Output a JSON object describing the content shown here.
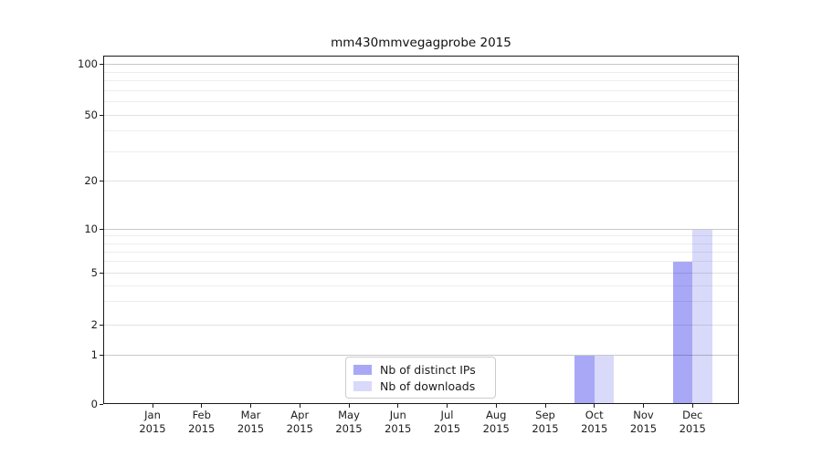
{
  "chart_data": {
    "type": "bar",
    "title": "mm430mmvegagprobe 2015",
    "xlabel": "",
    "ylabel": "",
    "yscale": "symlog",
    "ylim": [
      0,
      115
    ],
    "grid": "horizontal, major and minor",
    "legend_position": "lower center",
    "categories": [
      {
        "month": "Jan",
        "year": "2015"
      },
      {
        "month": "Feb",
        "year": "2015"
      },
      {
        "month": "Mar",
        "year": "2015"
      },
      {
        "month": "Apr",
        "year": "2015"
      },
      {
        "month": "May",
        "year": "2015"
      },
      {
        "month": "Jun",
        "year": "2015"
      },
      {
        "month": "Jul",
        "year": "2015"
      },
      {
        "month": "Aug",
        "year": "2015"
      },
      {
        "month": "Sep",
        "year": "2015"
      },
      {
        "month": "Oct",
        "year": "2015"
      },
      {
        "month": "Nov",
        "year": "2015"
      },
      {
        "month": "Dec",
        "year": "2015"
      }
    ],
    "series": [
      {
        "name": "Nb of distinct IPs",
        "color": "#a8a8f7",
        "values": [
          0,
          0,
          0,
          0,
          0,
          0,
          0,
          0,
          0,
          1,
          0,
          6
        ]
      },
      {
        "name": "Nb of downloads",
        "color": "#d9d9fa",
        "values": [
          0,
          0,
          0,
          0,
          0,
          0,
          0,
          0,
          0,
          1,
          0,
          10
        ]
      }
    ],
    "y_tick_labels": [
      "0",
      "1",
      "2",
      "5",
      "10",
      "20",
      "50",
      "100"
    ],
    "y_tick_values": [
      0,
      1,
      2,
      5,
      10,
      20,
      50,
      100
    ],
    "y_minor_values": [
      3,
      4,
      6,
      7,
      8,
      9,
      30,
      40,
      60,
      70,
      80,
      90
    ]
  }
}
